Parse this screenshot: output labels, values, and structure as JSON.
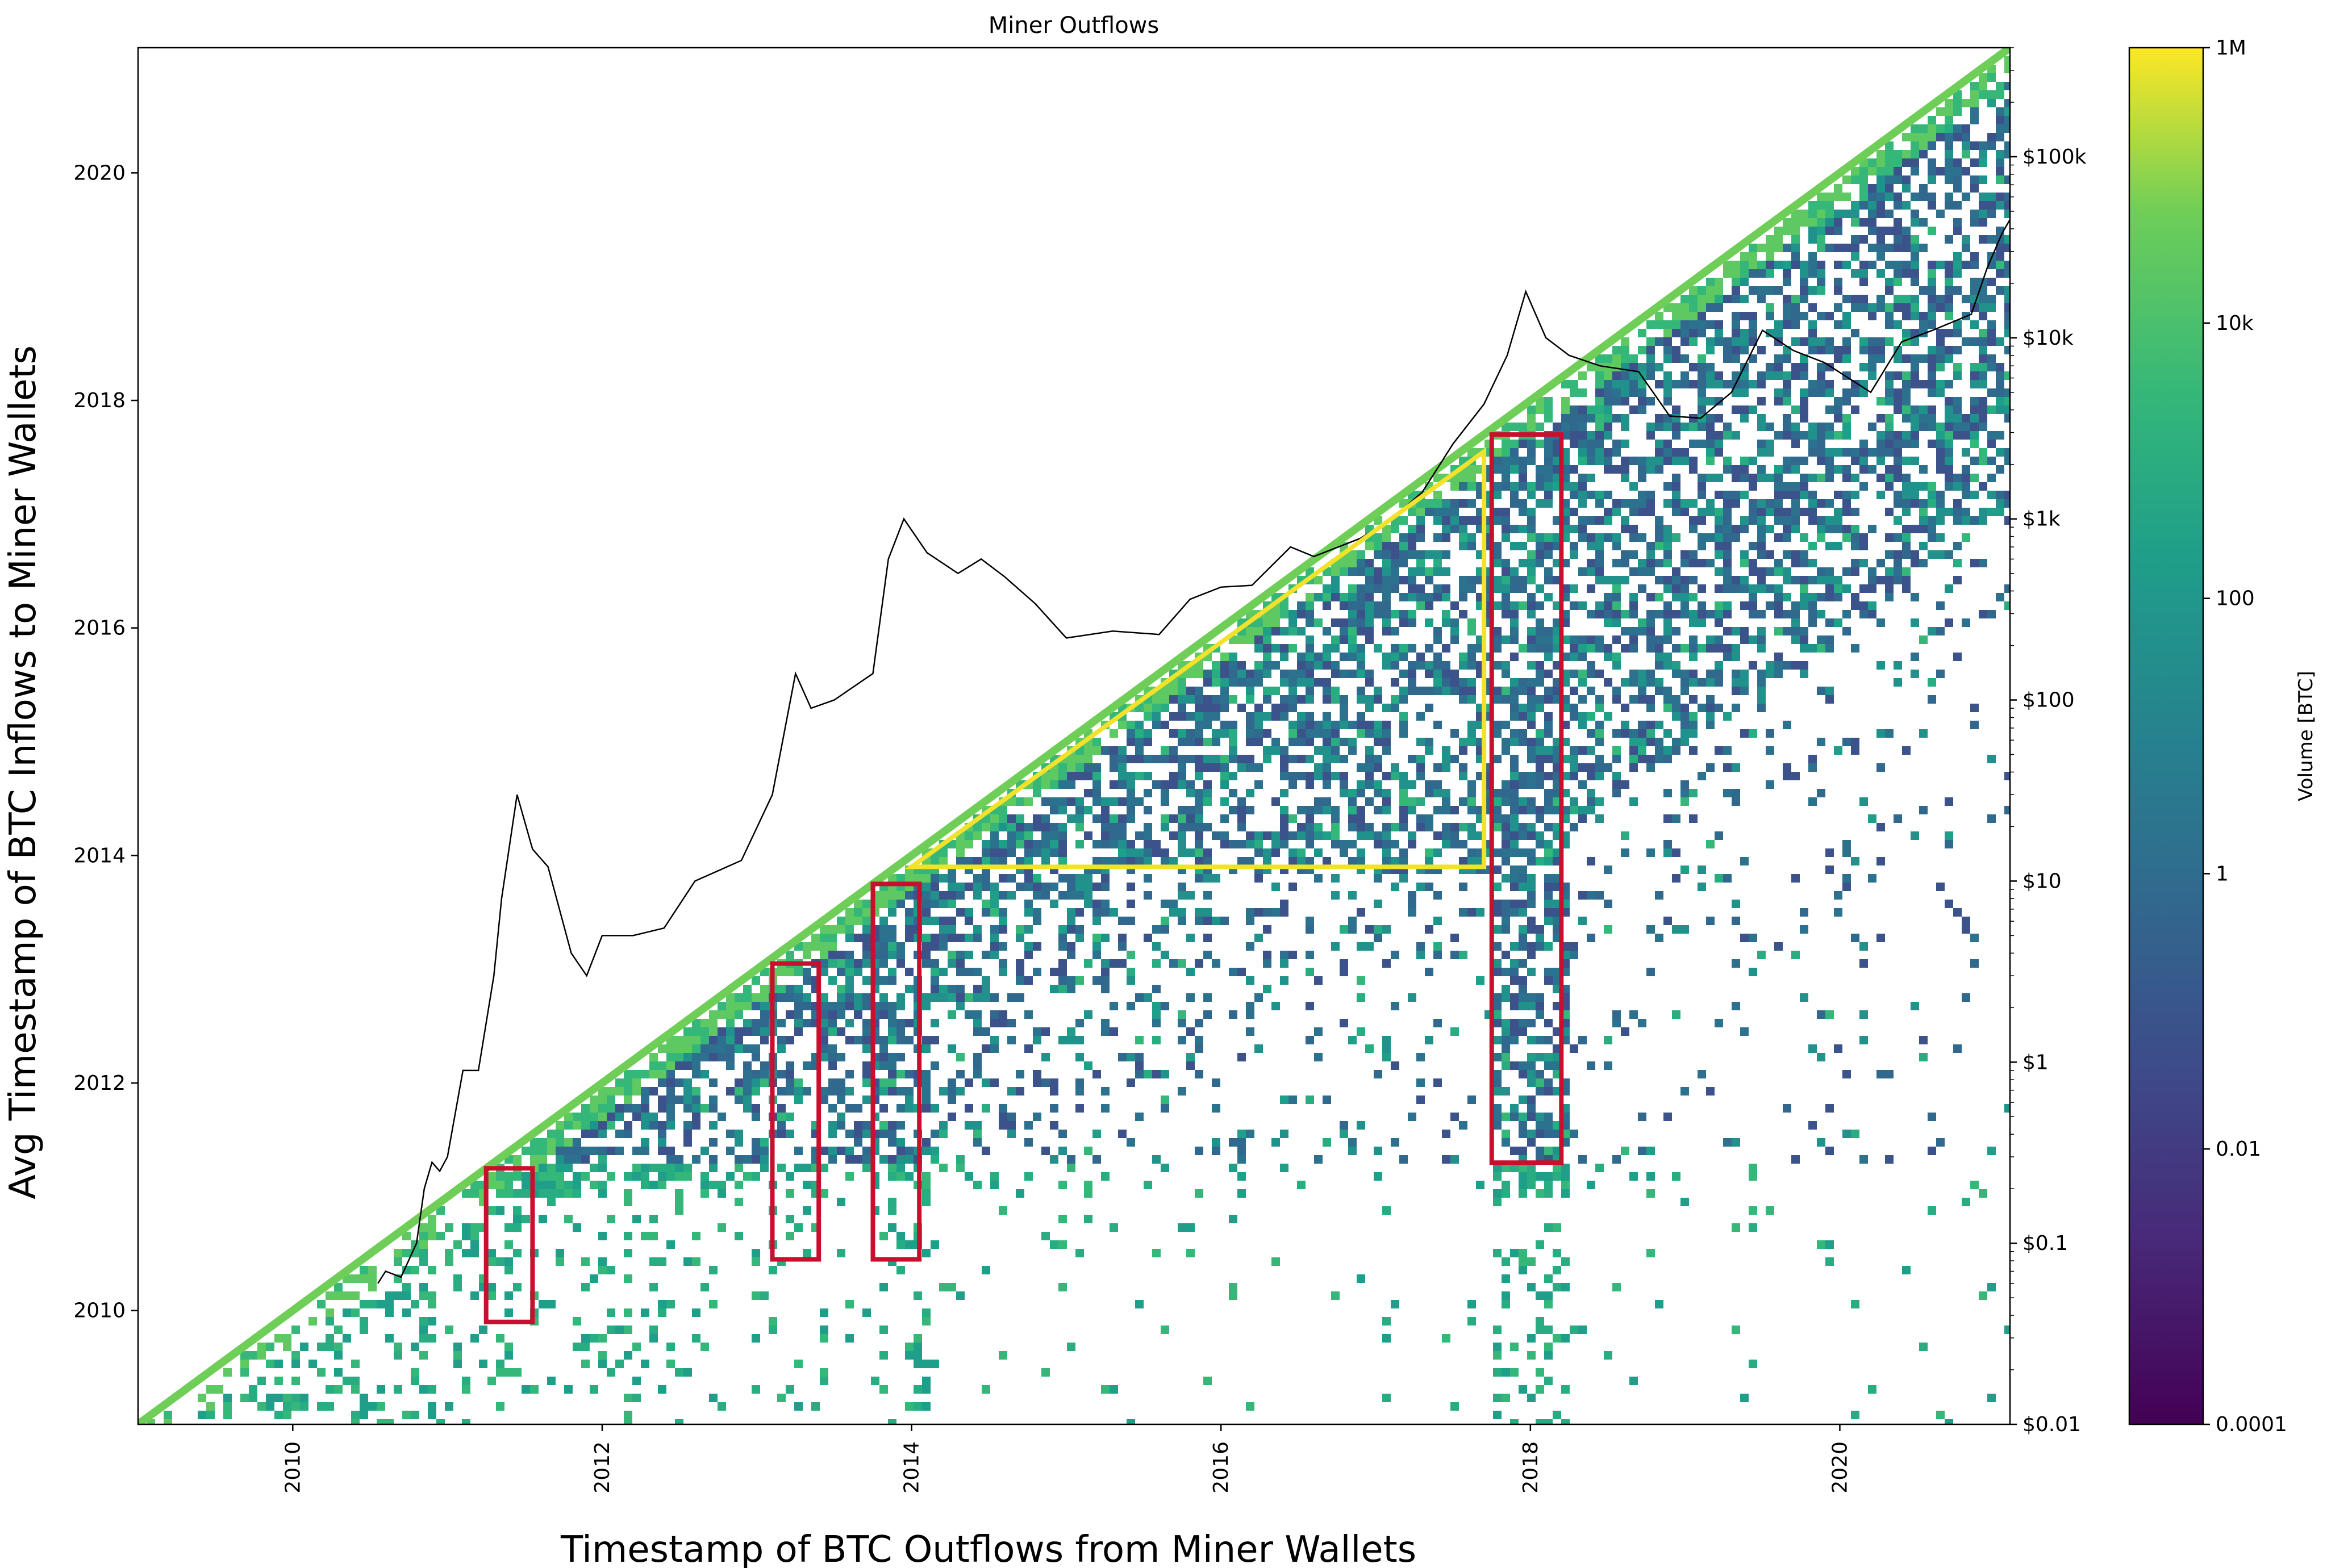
{
  "chart_data": {
    "type": "heatmap",
    "title": "Miner Outflows",
    "xlabel": "Timestamp of BTC Outflows from Miner Wallets",
    "ylabel": "Avg Timestamp of BTC Inflows to Miner Wallets",
    "xlim": [
      2009.0,
      2021.1
    ],
    "ylim": [
      2009.0,
      2021.1
    ],
    "x_ticks": [
      "2010",
      "2012",
      "2014",
      "2016",
      "2018",
      "2020"
    ],
    "y_ticks": [
      "2010",
      "2012",
      "2014",
      "2016",
      "2018",
      "2020"
    ],
    "price_axis": {
      "scale": "log",
      "range": [
        0.01,
        400000
      ],
      "ticks": [
        "$0.01",
        "$0.1",
        "$1",
        "$10",
        "$100",
        "$1k",
        "$10k",
        "$100k"
      ]
    },
    "colorbar": {
      "label": "Volume [BTC]",
      "scale": "log",
      "range": [
        0.0001,
        1000000
      ],
      "ticks": [
        "0.0001",
        "0.01",
        "1",
        "100",
        "10k",
        "1M"
      ],
      "colormap": "viridis"
    },
    "price_series": [
      [
        2010.55,
        0.06
      ],
      [
        2010.6,
        0.07
      ],
      [
        2010.7,
        0.065
      ],
      [
        2010.8,
        0.1
      ],
      [
        2010.85,
        0.2
      ],
      [
        2010.9,
        0.28
      ],
      [
        2010.95,
        0.25
      ],
      [
        2011.0,
        0.3
      ],
      [
        2011.1,
        0.9
      ],
      [
        2011.2,
        0.9
      ],
      [
        2011.3,
        3
      ],
      [
        2011.35,
        8
      ],
      [
        2011.45,
        30
      ],
      [
        2011.55,
        15
      ],
      [
        2011.65,
        12
      ],
      [
        2011.8,
        4
      ],
      [
        2011.9,
        3
      ],
      [
        2012.0,
        5
      ],
      [
        2012.2,
        5
      ],
      [
        2012.4,
        5.5
      ],
      [
        2012.6,
        10
      ],
      [
        2012.9,
        13
      ],
      [
        2013.1,
        30
      ],
      [
        2013.25,
        140
      ],
      [
        2013.35,
        90
      ],
      [
        2013.5,
        100
      ],
      [
        2013.75,
        140
      ],
      [
        2013.85,
        600
      ],
      [
        2013.95,
        1000
      ],
      [
        2014.1,
        650
      ],
      [
        2014.3,
        500
      ],
      [
        2014.45,
        600
      ],
      [
        2014.6,
        480
      ],
      [
        2014.8,
        340
      ],
      [
        2015.0,
        220
      ],
      [
        2015.3,
        240
      ],
      [
        2015.6,
        230
      ],
      [
        2015.8,
        360
      ],
      [
        2016.0,
        420
      ],
      [
        2016.2,
        430
      ],
      [
        2016.45,
        700
      ],
      [
        2016.6,
        620
      ],
      [
        2016.9,
        780
      ],
      [
        2017.1,
        1000
      ],
      [
        2017.3,
        1400
      ],
      [
        2017.5,
        2600
      ],
      [
        2017.7,
        4300
      ],
      [
        2017.85,
        8000
      ],
      [
        2017.97,
        18000
      ],
      [
        2018.1,
        10000
      ],
      [
        2018.25,
        8000
      ],
      [
        2018.45,
        7000
      ],
      [
        2018.7,
        6500
      ],
      [
        2018.9,
        3700
      ],
      [
        2019.1,
        3600
      ],
      [
        2019.3,
        5000
      ],
      [
        2019.5,
        11000
      ],
      [
        2019.7,
        8500
      ],
      [
        2019.9,
        7300
      ],
      [
        2020.2,
        5000
      ],
      [
        2020.4,
        9500
      ],
      [
        2020.6,
        11000
      ],
      [
        2020.85,
        13500
      ],
      [
        2020.95,
        24000
      ],
      [
        2021.05,
        38000
      ],
      [
        2021.1,
        45000
      ]
    ],
    "highlight_regions": [
      {
        "shape": "rectangle",
        "color": "#c8102e",
        "x": [
          2011.25,
          2011.55
        ],
        "y": [
          2009.9,
          2011.25
        ]
      },
      {
        "shape": "rectangle",
        "color": "#c8102e",
        "x": [
          2013.1,
          2013.4
        ],
        "y": [
          2010.45,
          2013.05
        ]
      },
      {
        "shape": "rectangle",
        "color": "#c8102e",
        "x": [
          2013.75,
          2014.05
        ],
        "y": [
          2010.45,
          2013.75
        ]
      },
      {
        "shape": "rectangle",
        "color": "#c8102e",
        "x": [
          2017.75,
          2018.2
        ],
        "y": [
          2011.3,
          2017.7
        ]
      },
      {
        "shape": "triangle",
        "color": "#f2e22b",
        "points": [
          [
            2014.0,
            2013.9
          ],
          [
            2017.7,
            2013.9
          ],
          [
            2017.7,
            2017.55
          ]
        ]
      }
    ]
  }
}
